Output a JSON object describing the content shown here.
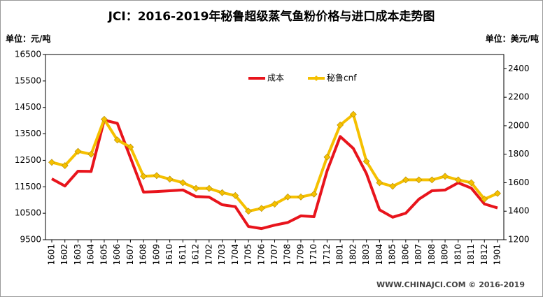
{
  "chart_data": {
    "type": "line",
    "title": "JCI：2016-2019年秘鲁超级蒸气鱼粉价格与进口成本走势图",
    "y_label": "单位：元/吨",
    "y2_label": "单位：美元/吨",
    "source": "WWW.CHINAJCI.COM © 2016-2019",
    "categories": [
      "1601",
      "1602",
      "1603",
      "1604",
      "1605",
      "1606",
      "1607",
      "1608",
      "1609",
      "1610",
      "1611",
      "1612",
      "1702",
      "1703",
      "1704",
      "1705",
      "1706",
      "1707",
      "1708",
      "1709",
      "1710",
      "1712",
      "1801",
      "1802",
      "1803",
      "1804",
      "1805",
      "1806",
      "1807",
      "1808",
      "1809",
      "1810",
      "1811",
      "1812",
      "1901"
    ],
    "series": [
      {
        "name": "成本",
        "color": "#e8141c",
        "axis": "y",
        "values": [
          11800,
          11530,
          12090,
          12080,
          14020,
          13900,
          12600,
          11300,
          11320,
          11350,
          11380,
          11130,
          11110,
          10820,
          10750,
          10000,
          9920,
          10050,
          10150,
          10400,
          10370,
          12100,
          13400,
          12950,
          12000,
          10630,
          10350,
          10500,
          11030,
          11350,
          11380,
          11650,
          11450,
          10850,
          10700
        ]
      },
      {
        "name": "秘鲁cnf",
        "color": "#f5c000",
        "axis": "y2",
        "values": [
          1743,
          1720,
          1820,
          1800,
          2045,
          1900,
          1850,
          1645,
          1650,
          1625,
          1600,
          1560,
          1560,
          1530,
          1510,
          1400,
          1420,
          1450,
          1500,
          1500,
          1520,
          1780,
          2005,
          2080,
          1750,
          1600,
          1575,
          1620,
          1620,
          1620,
          1645,
          1620,
          1600,
          1485,
          1525
        ]
      }
    ],
    "ylim": [
      9500,
      16500
    ],
    "yticks": [
      9500,
      10500,
      11500,
      12500,
      13500,
      14500,
      15500,
      16500
    ],
    "y2lim": [
      1200,
      2500
    ],
    "y2ticks": [
      1200,
      1400,
      1600,
      1800,
      2000,
      2200,
      2400
    ],
    "legend": "top",
    "grid": false
  }
}
